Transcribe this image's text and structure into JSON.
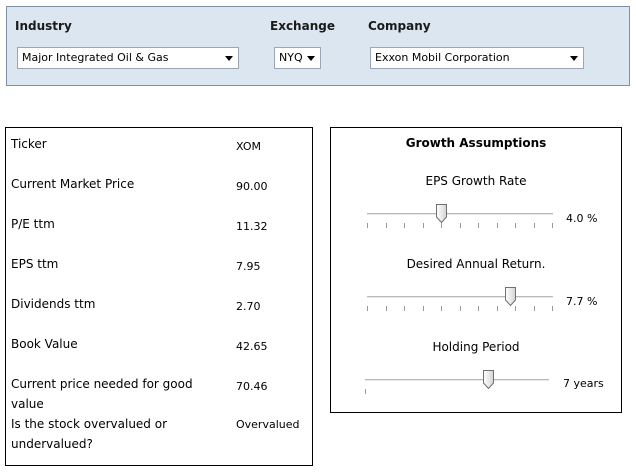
{
  "selectors": {
    "industry": {
      "label": "Industry",
      "value": "Major Integrated Oil & Gas"
    },
    "exchange": {
      "label": "Exchange",
      "value": "NYQ"
    },
    "company": {
      "label": "Company",
      "value": "Exxon Mobil Corporation"
    }
  },
  "info": [
    {
      "label": "Ticker",
      "value": "XOM"
    },
    {
      "label": "Current Market Price",
      "value": "90.00"
    },
    {
      "label": "P/E ttm",
      "value": "11.32"
    },
    {
      "label": "EPS ttm",
      "value": "7.95"
    },
    {
      "label": "Dividends ttm",
      "value": "2.70"
    },
    {
      "label": "Book Value",
      "value": "42.65"
    },
    {
      "label": "Current price needed for good value",
      "value": "70.46"
    },
    {
      "label": "Is the stock overvalued or undervalued?",
      "value": "Overvalued"
    }
  ],
  "growth": {
    "title": "Growth Assumptions",
    "sliders": [
      {
        "label": "EPS Growth Rate",
        "value_text": "4.0 %",
        "position": 0.4,
        "tick_count": 11
      },
      {
        "label": "Desired Annual Return.",
        "value_text": "7.7 %",
        "position": 0.77,
        "tick_count": 11
      },
      {
        "label": "Holding Period",
        "value_text": "7 years",
        "position": 0.67,
        "tick_count": 1
      }
    ]
  }
}
